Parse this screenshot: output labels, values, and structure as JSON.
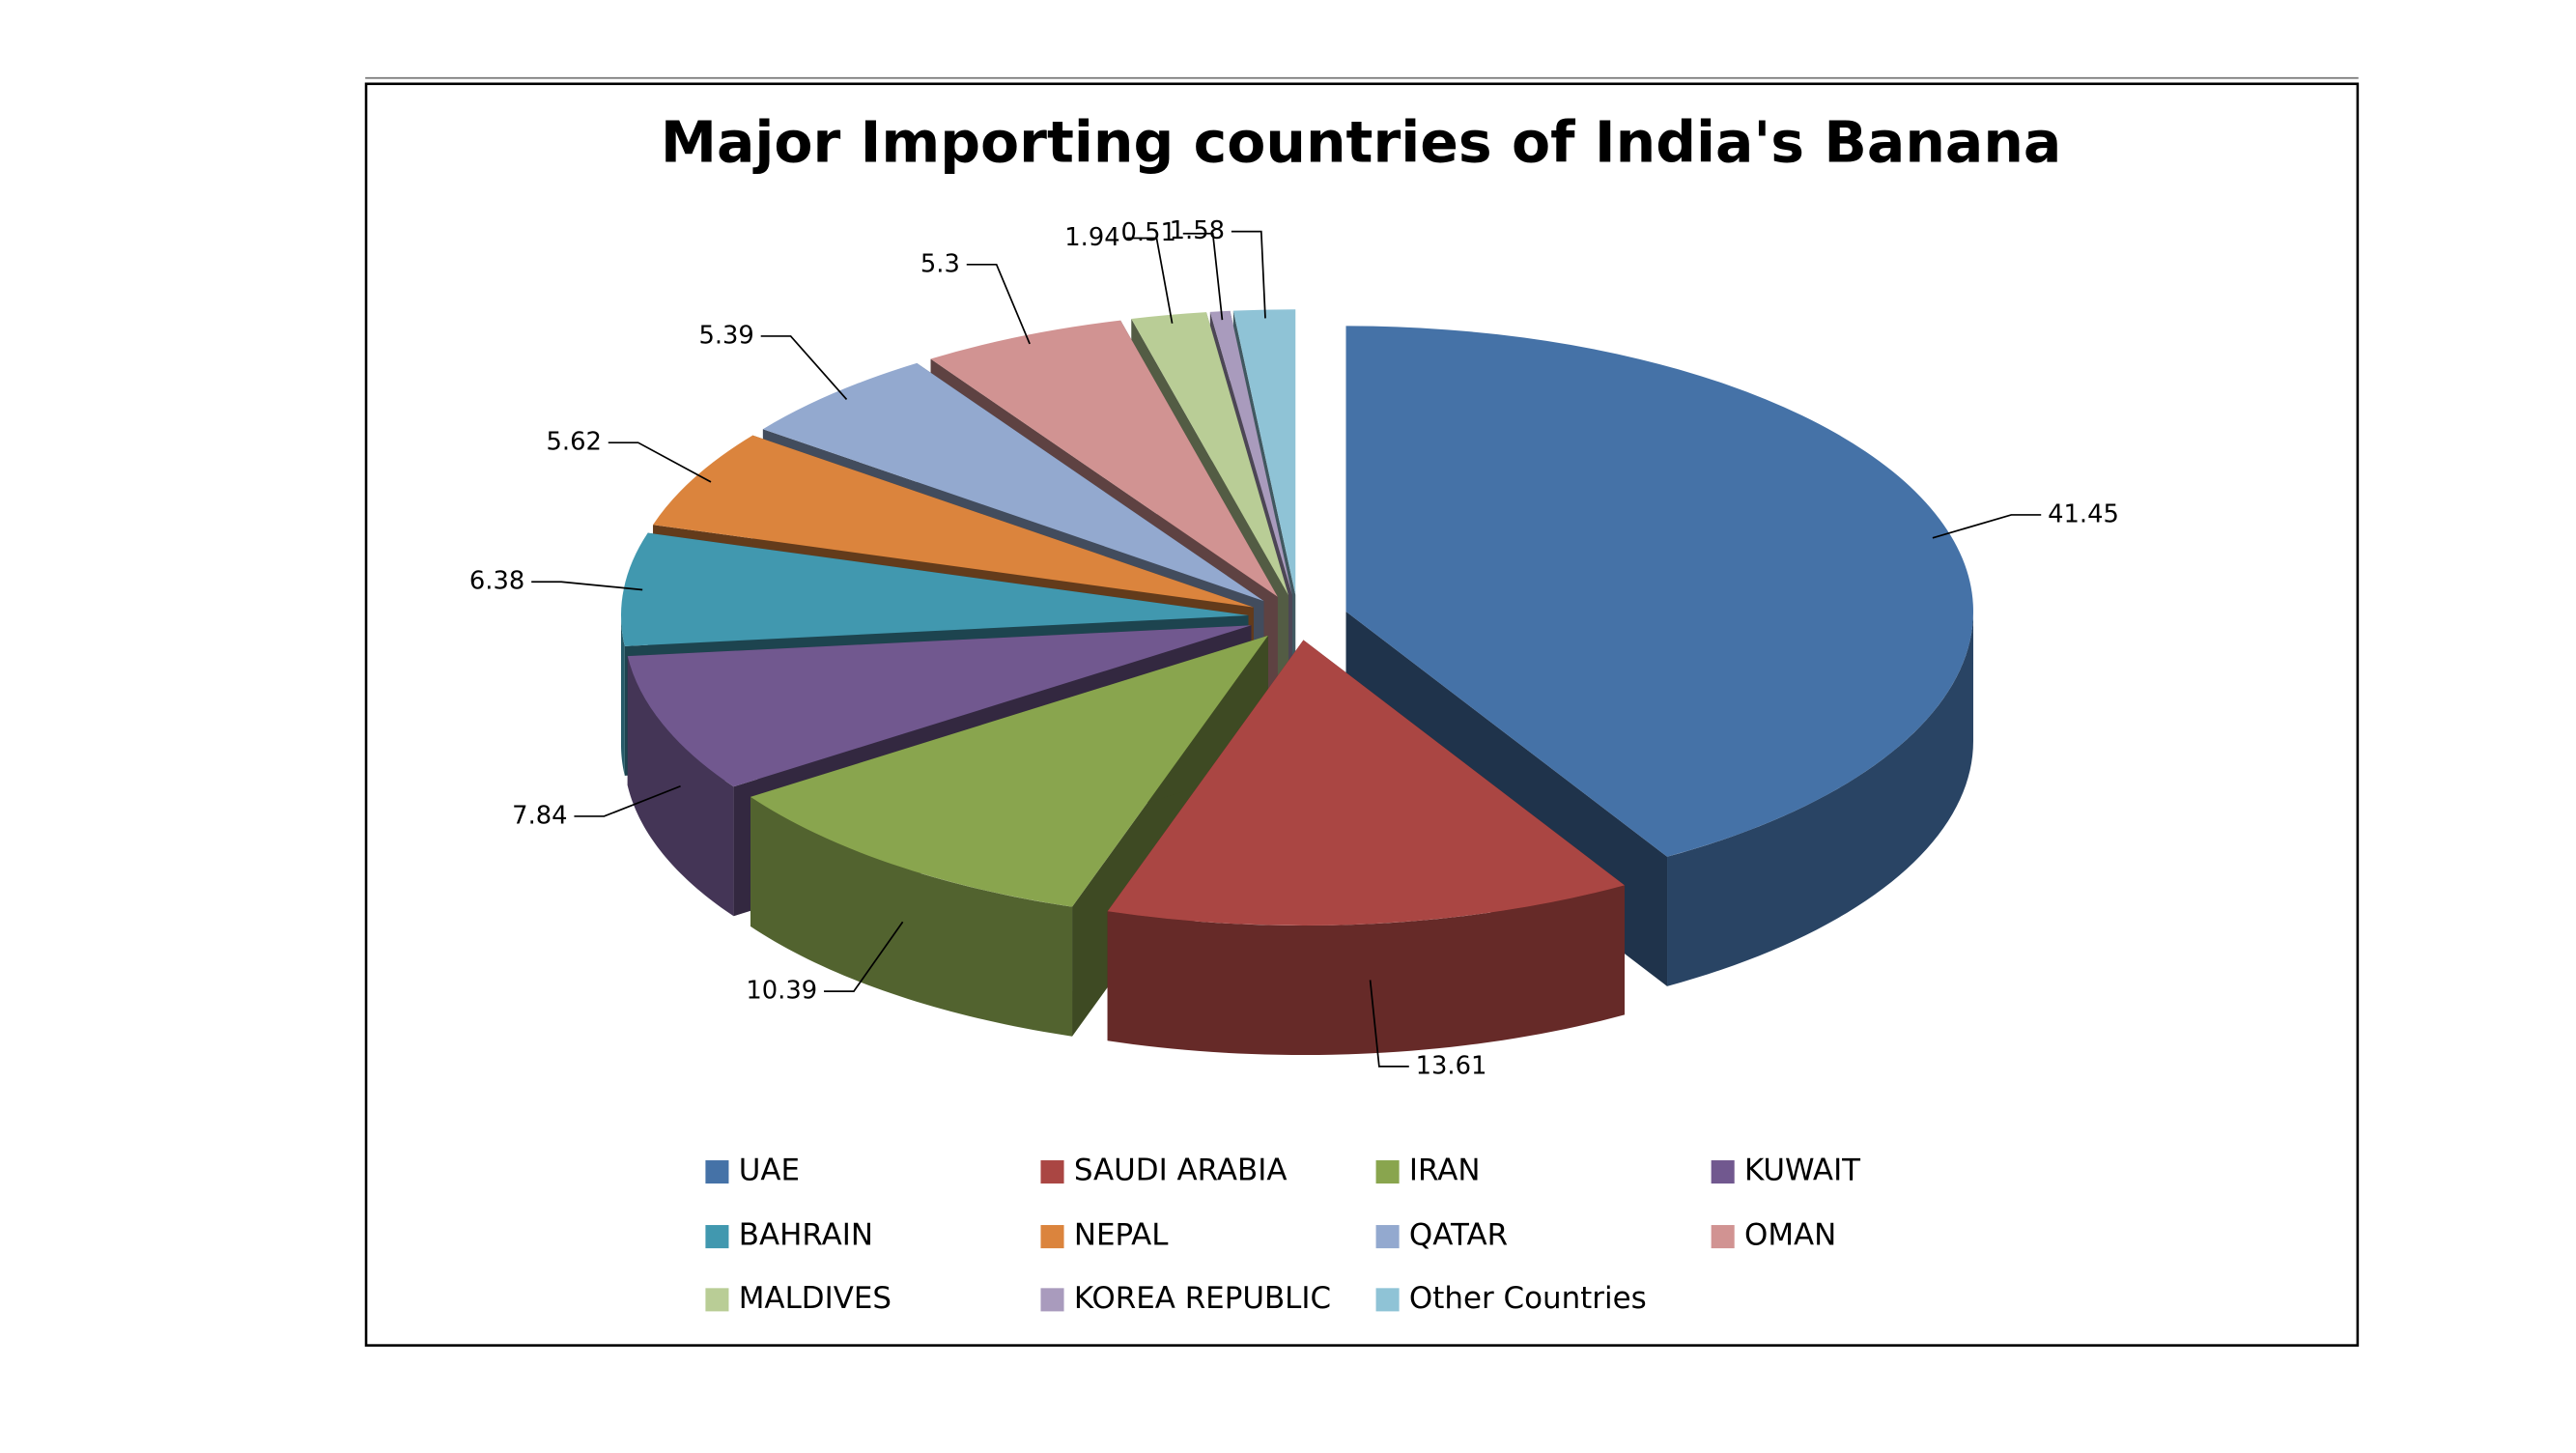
{
  "chart_data": {
    "type": "pie",
    "title": "Major Importing countries of India's Banana",
    "categories": [
      "UAE",
      "SAUDI ARABIA",
      "IRAN",
      "KUWAIT",
      "BAHRAIN",
      "NEPAL",
      "QATAR",
      "OMAN",
      "MALDIVES",
      "KOREA REPUBLIC",
      "Other Countries"
    ],
    "values": [
      41.45,
      13.61,
      10.39,
      7.84,
      6.38,
      5.62,
      5.39,
      5.3,
      1.94,
      0.51,
      1.58
    ],
    "colors": [
      "#4572a7",
      "#aa4643",
      "#89a54e",
      "#71588f",
      "#4198af",
      "#db843d",
      "#93a9cf",
      "#d19392",
      "#b9cd96",
      "#a99bbd",
      "#8fc3d6"
    ],
    "legend": "bottom"
  }
}
